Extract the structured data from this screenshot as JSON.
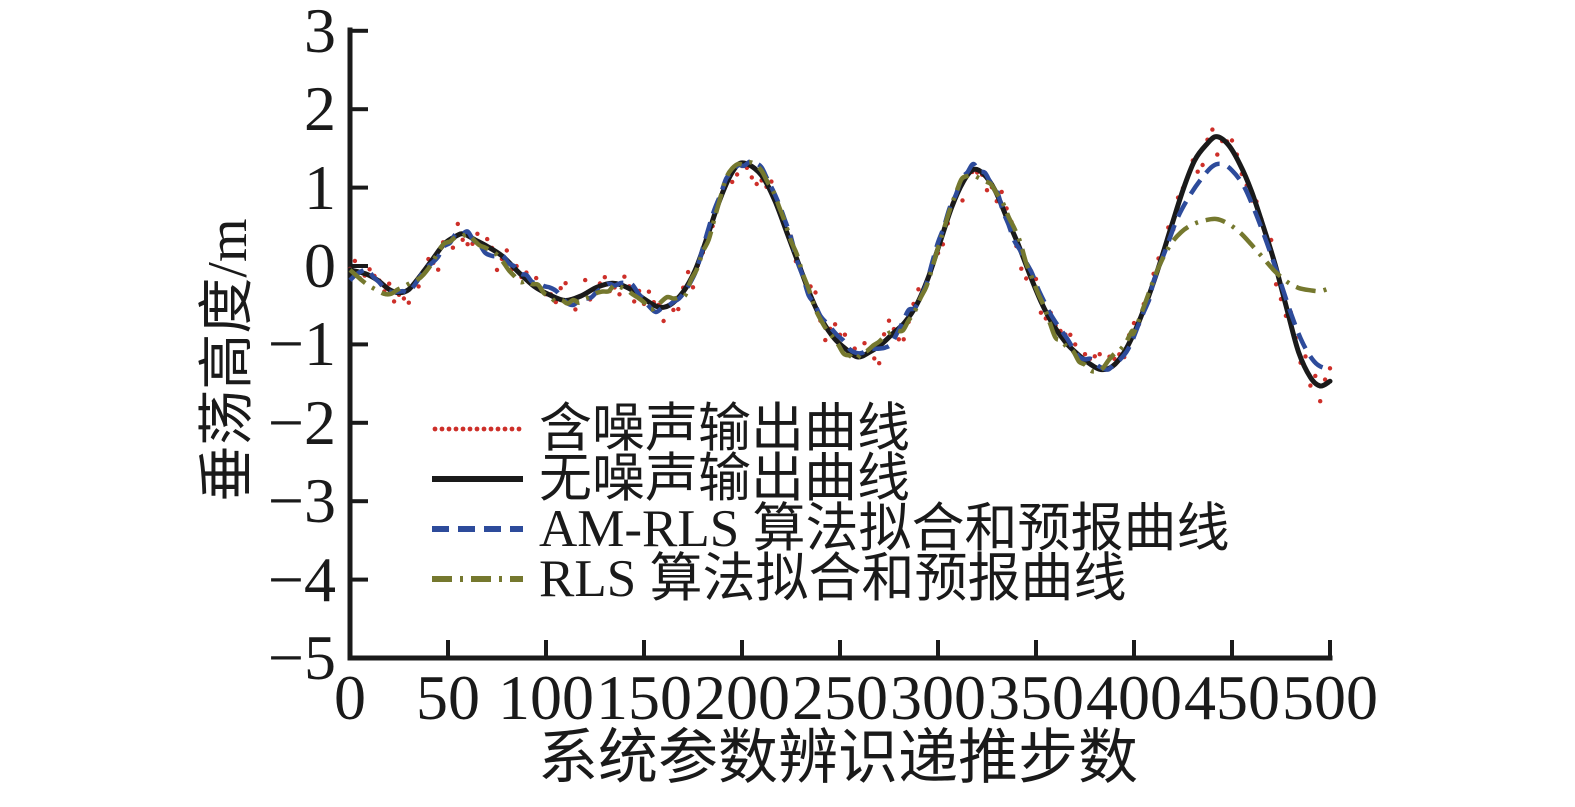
{
  "figure": {
    "background": "#ffffff",
    "axis_color": "#1a1a1a"
  },
  "chart_data": {
    "type": "line",
    "title": "",
    "xlabel": "系统参数辨识递推步数",
    "ylabel": "垂荡高度/m",
    "xlim": [
      0,
      500
    ],
    "ylim": [
      -5,
      3
    ],
    "grid": false,
    "legend_position": "inside-lower-left",
    "x_ticks": [
      0,
      50,
      100,
      150,
      200,
      250,
      300,
      350,
      400,
      450,
      500
    ],
    "x_tick_labels": [
      "0",
      "50",
      "100",
      "150",
      "200",
      "250",
      "300",
      "350",
      "400",
      "450",
      "500"
    ],
    "y_ticks": [
      3,
      2,
      1,
      0,
      -1,
      -2,
      -3,
      -4,
      -5
    ],
    "y_tick_labels": [
      "3",
      "2",
      "1",
      "0",
      "−1",
      "−2",
      "−3",
      "−4",
      "−5"
    ],
    "series": [
      {
        "key": "noisy",
        "name": "含噪声输出曲线",
        "color": "#cd2f29",
        "style": "scatter-dot",
        "marker_radius": 2.2,
        "sample_step": 2.5,
        "noise_amplitude": 0.25,
        "noise_seed": 42,
        "base": "true"
      },
      {
        "key": "true",
        "name": "无噪声输出曲线",
        "color": "#1a1a1a",
        "style": "solid",
        "width": 5,
        "points": [
          [
            0,
            -0.05
          ],
          [
            8,
            -0.1
          ],
          [
            14,
            -0.18
          ],
          [
            20,
            -0.3
          ],
          [
            25,
            -0.34
          ],
          [
            30,
            -0.3
          ],
          [
            36,
            -0.12
          ],
          [
            42,
            0.08
          ],
          [
            48,
            0.28
          ],
          [
            54,
            0.38
          ],
          [
            58,
            0.41
          ],
          [
            64,
            0.33
          ],
          [
            70,
            0.25
          ],
          [
            78,
            0.12
          ],
          [
            86,
            -0.08
          ],
          [
            94,
            -0.26
          ],
          [
            102,
            -0.37
          ],
          [
            110,
            -0.44
          ],
          [
            118,
            -0.38
          ],
          [
            126,
            -0.27
          ],
          [
            134,
            -0.22
          ],
          [
            142,
            -0.28
          ],
          [
            150,
            -0.42
          ],
          [
            157,
            -0.52
          ],
          [
            163,
            -0.5
          ],
          [
            170,
            -0.33
          ],
          [
            176,
            -0.06
          ],
          [
            182,
            0.35
          ],
          [
            188,
            0.8
          ],
          [
            194,
            1.15
          ],
          [
            199,
            1.31
          ],
          [
            205,
            1.27
          ],
          [
            211,
            1.12
          ],
          [
            217,
            0.82
          ],
          [
            223,
            0.42
          ],
          [
            229,
            0.02
          ],
          [
            235,
            -0.38
          ],
          [
            241,
            -0.7
          ],
          [
            247,
            -0.92
          ],
          [
            253,
            -1.06
          ],
          [
            259,
            -1.16
          ],
          [
            265,
            -1.1
          ],
          [
            271,
            -1.0
          ],
          [
            277,
            -0.86
          ],
          [
            283,
            -0.72
          ],
          [
            289,
            -0.5
          ],
          [
            295,
            -0.15
          ],
          [
            301,
            0.3
          ],
          [
            307,
            0.75
          ],
          [
            313,
            1.08
          ],
          [
            318,
            1.23
          ],
          [
            323,
            1.18
          ],
          [
            329,
            0.97
          ],
          [
            335,
            0.62
          ],
          [
            341,
            0.27
          ],
          [
            347,
            -0.12
          ],
          [
            353,
            -0.48
          ],
          [
            359,
            -0.76
          ],
          [
            365,
            -0.97
          ],
          [
            371,
            -1.12
          ],
          [
            377,
            -1.24
          ],
          [
            383,
            -1.32
          ],
          [
            389,
            -1.28
          ],
          [
            395,
            -1.1
          ],
          [
            401,
            -0.8
          ],
          [
            407,
            -0.42
          ],
          [
            413,
            0.02
          ],
          [
            419,
            0.5
          ],
          [
            425,
            0.97
          ],
          [
            431,
            1.35
          ],
          [
            437,
            1.55
          ],
          [
            442,
            1.65
          ],
          [
            448,
            1.55
          ],
          [
            454,
            1.3
          ],
          [
            460,
            0.95
          ],
          [
            466,
            0.5
          ],
          [
            472,
            0.02
          ],
          [
            478,
            -0.55
          ],
          [
            484,
            -1.1
          ],
          [
            490,
            -1.42
          ],
          [
            495,
            -1.53
          ],
          [
            500,
            -1.47
          ]
        ]
      },
      {
        "key": "am_rls",
        "name": "AM-RLS 算法拟合和预报曲线",
        "color": "#2d4b9b",
        "style": "dashed",
        "dash": [
          17,
          9
        ],
        "width": 4.5,
        "base": "true",
        "follow_until": 410,
        "wiggle_amplitude": 0.07,
        "wiggle_seed": 7,
        "tail": [
          [
            410,
            -0.2
          ],
          [
            416,
            0.2
          ],
          [
            422,
            0.6
          ],
          [
            428,
            0.88
          ],
          [
            434,
            1.1
          ],
          [
            440,
            1.27
          ],
          [
            445,
            1.3
          ],
          [
            450,
            1.22
          ],
          [
            456,
            1.02
          ],
          [
            462,
            0.68
          ],
          [
            468,
            0.28
          ],
          [
            474,
            -0.15
          ],
          [
            480,
            -0.6
          ],
          [
            486,
            -0.98
          ],
          [
            492,
            -1.22
          ],
          [
            497,
            -1.3
          ],
          [
            500,
            -1.28
          ]
        ]
      },
      {
        "key": "rls",
        "name": "RLS 算法拟合和预报曲线",
        "color": "#75782e",
        "style": "dash-dot",
        "dash": [
          20,
          8,
          3,
          8
        ],
        "width": 4.5,
        "base": "true",
        "follow_until": 400,
        "wiggle_amplitude": 0.07,
        "wiggle_seed": 13,
        "tail": [
          [
            400,
            -0.85
          ],
          [
            406,
            -0.45
          ],
          [
            412,
            -0.05
          ],
          [
            418,
            0.25
          ],
          [
            424,
            0.43
          ],
          [
            430,
            0.53
          ],
          [
            436,
            0.58
          ],
          [
            442,
            0.6
          ],
          [
            448,
            0.54
          ],
          [
            454,
            0.43
          ],
          [
            460,
            0.27
          ],
          [
            466,
            0.1
          ],
          [
            472,
            -0.07
          ],
          [
            478,
            -0.2
          ],
          [
            484,
            -0.28
          ],
          [
            490,
            -0.31
          ],
          [
            495,
            -0.32
          ],
          [
            500,
            -0.28
          ]
        ]
      }
    ]
  }
}
